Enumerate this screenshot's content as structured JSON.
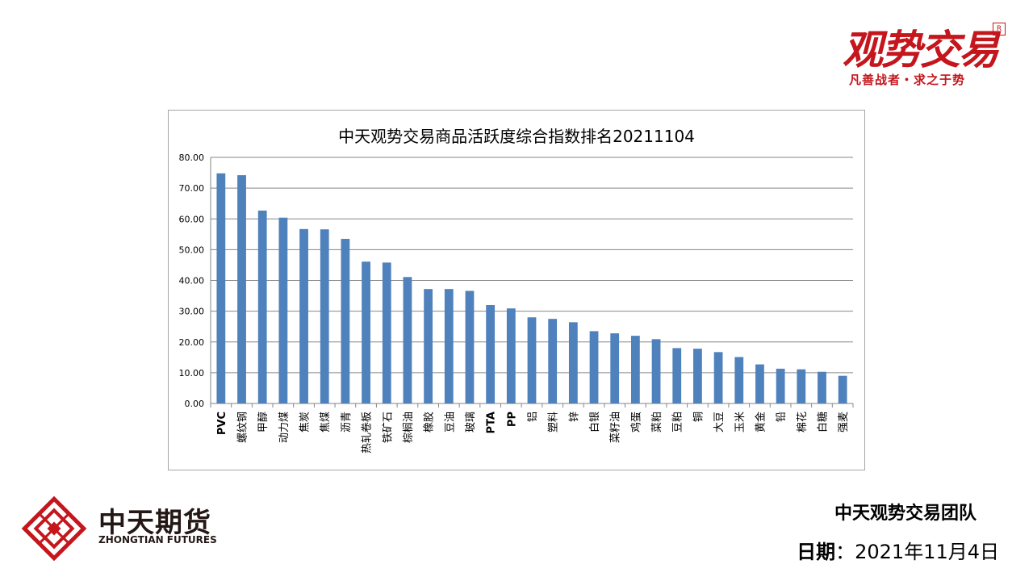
{
  "brand": {
    "name": "观势交易",
    "seal": "R",
    "slogan": "凡善战者・求之于势"
  },
  "company": {
    "name_cn": "中天期货",
    "name_en": "ZHONGTIAN FUTURES"
  },
  "footer": {
    "team": "中天观势交易团队",
    "date_label": "日期",
    "date_sep": "：",
    "date_value": "2021年11月4日"
  },
  "colors": {
    "bar": "#4f81bd",
    "brand_red": "#c4161c"
  },
  "chart_data": {
    "type": "bar",
    "title": "中天观势交易商品活跃度综合指数排名20211104",
    "xlabel": "",
    "ylabel": "",
    "ylim": [
      0,
      80
    ],
    "yticks": [
      "0.00",
      "10.00",
      "20.00",
      "30.00",
      "40.00",
      "50.00",
      "60.00",
      "70.00",
      "80.00"
    ],
    "grid": true,
    "legend": "none",
    "categories": [
      "PVC",
      "螺纹钢",
      "甲醇",
      "动力煤",
      "焦炭",
      "焦煤",
      "沥青",
      "热轧卷板",
      "铁矿石",
      "棕榈油",
      "橡胶",
      "豆油",
      "玻璃",
      "PTA",
      "PP",
      "铝",
      "塑料",
      "锌",
      "白银",
      "菜籽油",
      "鸡蛋",
      "菜粕",
      "豆粕",
      "铜",
      "大豆",
      "玉米",
      "黄金",
      "铅",
      "棉花",
      "白糖",
      "强麦"
    ],
    "values": [
      74.8,
      74.2,
      62.7,
      60.4,
      56.7,
      56.6,
      53.5,
      46.1,
      45.8,
      41.1,
      37.2,
      37.2,
      36.6,
      32.0,
      30.9,
      28.0,
      27.5,
      26.4,
      23.5,
      22.8,
      22.0,
      20.9,
      18.0,
      17.8,
      16.7,
      15.1,
      12.7,
      11.3,
      11.1,
      10.3,
      9.0
    ]
  }
}
